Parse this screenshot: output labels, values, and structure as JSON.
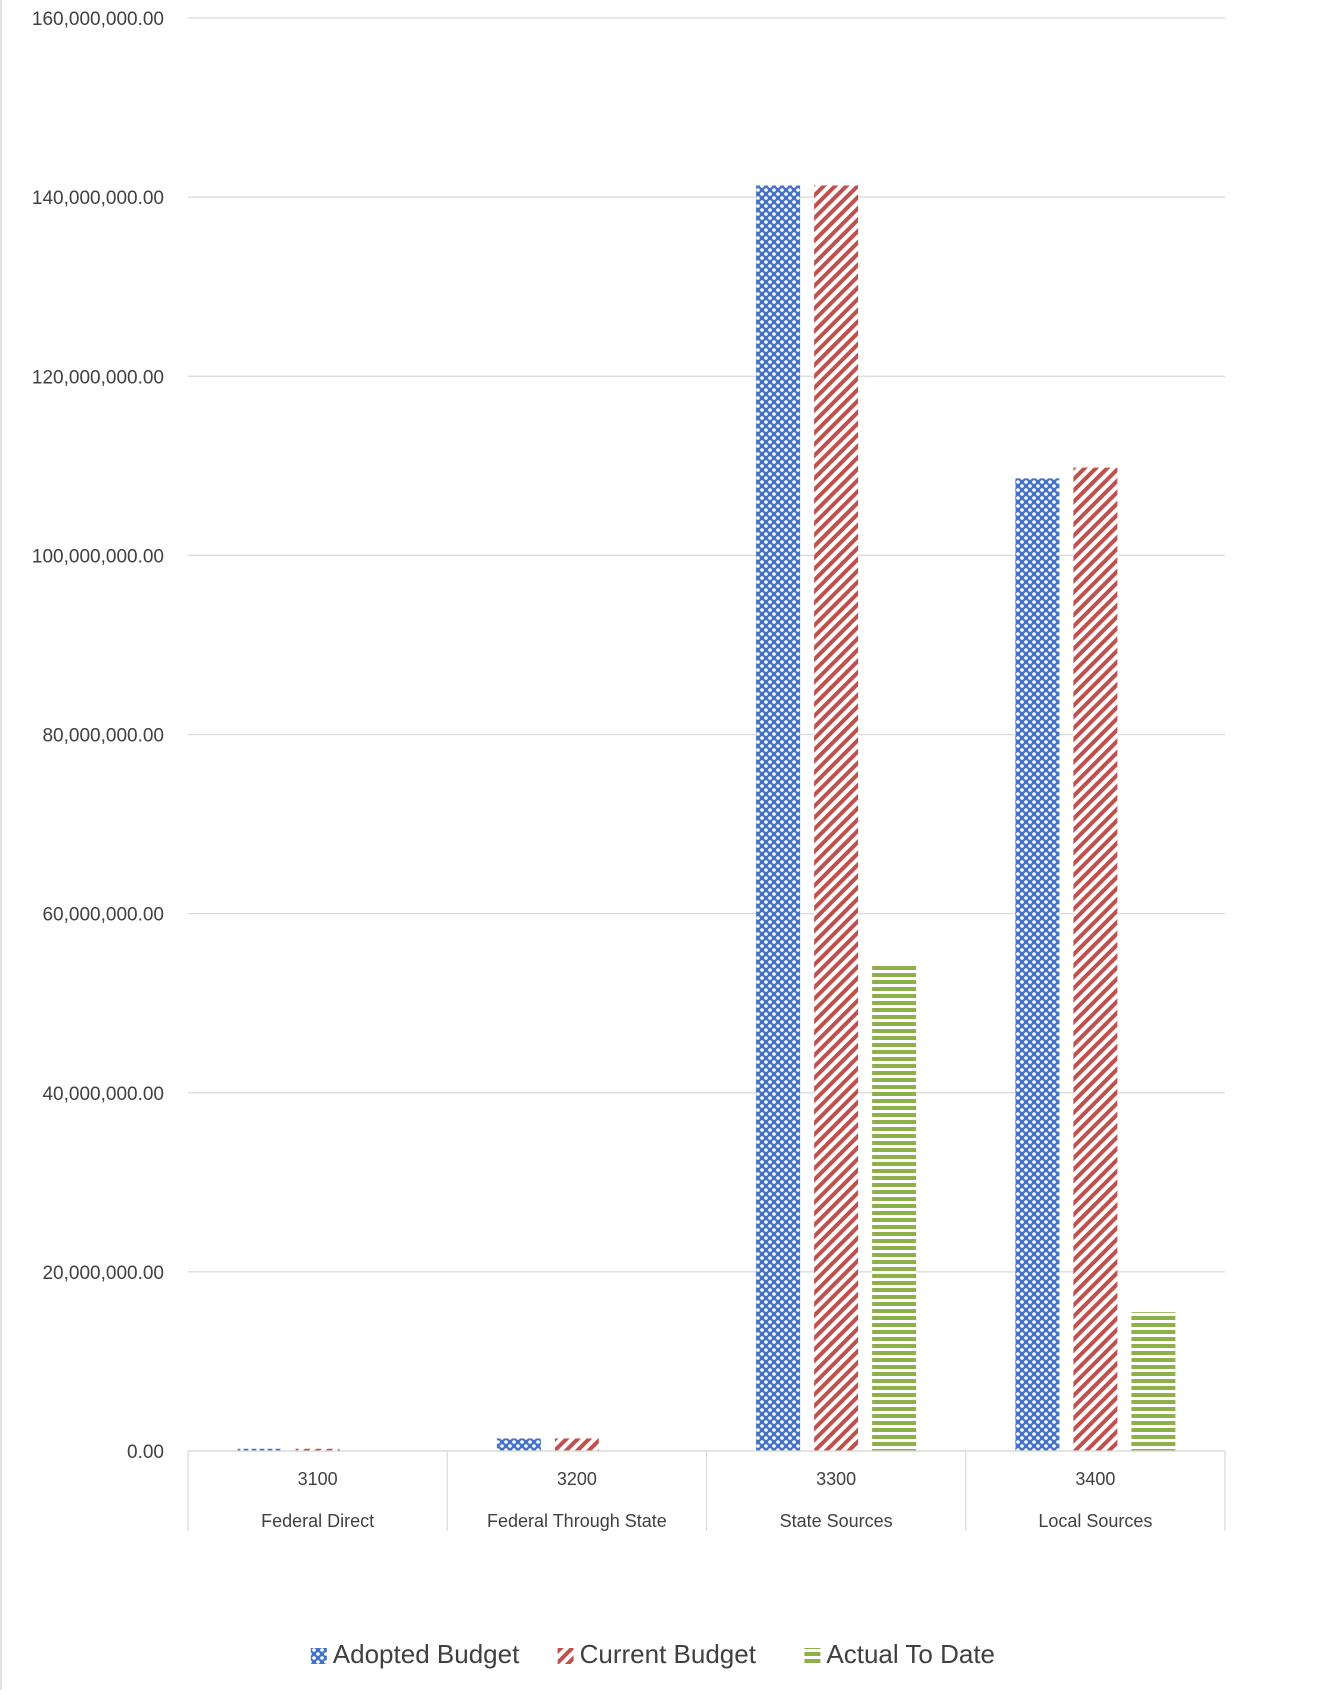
{
  "chart_data": {
    "type": "bar",
    "categories": [
      {
        "code": "3100",
        "name": "Federal Direct"
      },
      {
        "code": "3200",
        "name": "Federal Through State"
      },
      {
        "code": "3300",
        "name": "State Sources"
      },
      {
        "code": "3400",
        "name": "Local Sources"
      }
    ],
    "series": [
      {
        "name": "Adopted Budget",
        "color": "#4472C4",
        "pattern": "dots",
        "values": [
          250000,
          1400000,
          141300000,
          108600000
        ]
      },
      {
        "name": "Current Budget",
        "color": "#C0504D",
        "pattern": "diagonal",
        "values": [
          250000,
          1400000,
          141300000,
          109800000
        ]
      },
      {
        "name": "Actual To Date",
        "color": "#8DB04A",
        "pattern": "horizontal",
        "values": [
          0,
          0,
          54300000,
          15500000
        ]
      }
    ],
    "yaxis": {
      "min": 0,
      "max": 160000000,
      "ticks": [
        {
          "value": 0,
          "label": "0.00"
        },
        {
          "value": 20000000,
          "label": "20,000,000.00"
        },
        {
          "value": 40000000,
          "label": "40,000,000.00"
        },
        {
          "value": 60000000,
          "label": "60,000,000.00"
        },
        {
          "value": 80000000,
          "label": "80,000,000.00"
        },
        {
          "value": 100000000,
          "label": "100,000,000.00"
        },
        {
          "value": 120000000,
          "label": "120,000,000.00"
        },
        {
          "value": 140000000,
          "label": "140,000,000.00"
        },
        {
          "value": 160000000,
          "label": "160,000,000.00"
        }
      ]
    },
    "grid": true,
    "legend_position": "bottom",
    "title": "",
    "xlabel": "",
    "ylabel": ""
  }
}
